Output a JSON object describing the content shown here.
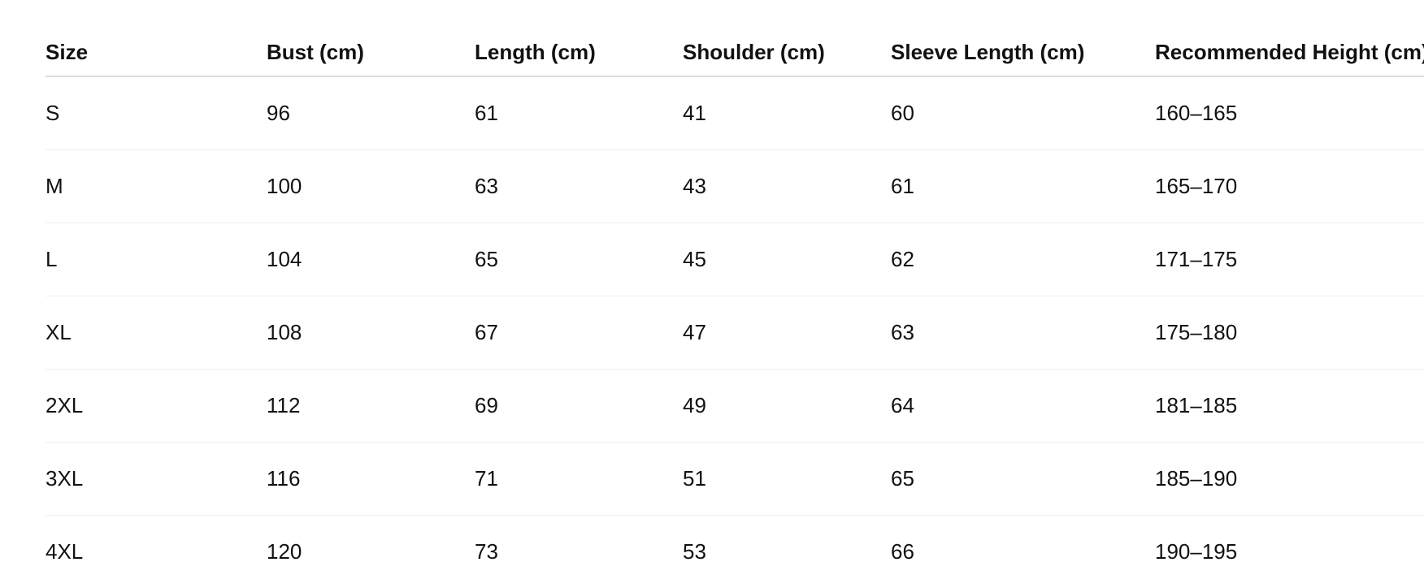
{
  "size_chart": {
    "headers": [
      "Size",
      "Bust (cm)",
      "Length (cm)",
      "Shoulder (cm)",
      "Sleeve Length (cm)",
      "Recommended Height (cm)"
    ],
    "rows": [
      [
        "S",
        "96",
        "61",
        "41",
        "60",
        "160–165"
      ],
      [
        "M",
        "100",
        "63",
        "43",
        "61",
        "165–170"
      ],
      [
        "L",
        "104",
        "65",
        "45",
        "62",
        "171–175"
      ],
      [
        "XL",
        "108",
        "67",
        "47",
        "63",
        "175–180"
      ],
      [
        "2XL",
        "112",
        "69",
        "49",
        "64",
        "181–185"
      ],
      [
        "3XL",
        "116",
        "71",
        "51",
        "65",
        "185–190"
      ],
      [
        "4XL",
        "120",
        "73",
        "53",
        "66",
        "190–195"
      ]
    ]
  }
}
